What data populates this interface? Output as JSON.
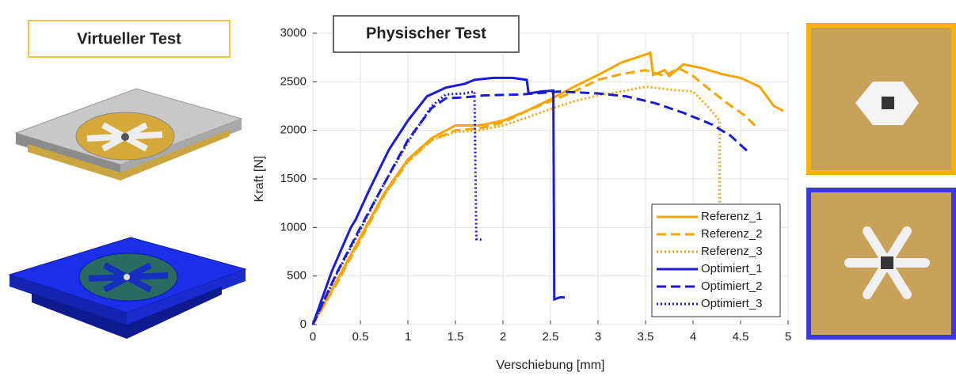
{
  "left_panel": {
    "title": "Virtueller Test"
  },
  "chart_data": {
    "type": "line",
    "annotation": "Physischer Test",
    "xlabel": "Verschiebung [mm]",
    "ylabel": "Kraft [N]",
    "xlim": [
      0,
      5
    ],
    "ylim": [
      0,
      3000
    ],
    "xticks": [
      0,
      0.5,
      1,
      1.5,
      2,
      2.5,
      3,
      3.5,
      4,
      4.5,
      5
    ],
    "yticks": [
      0,
      500,
      1000,
      1500,
      2000,
      2500,
      3000
    ],
    "grid": true,
    "legend": "lower right",
    "series": [
      {
        "name": "Referenz_1",
        "color": "#f7a500",
        "dash": "solid",
        "x": [
          0,
          0.25,
          0.5,
          0.75,
          1,
          1.25,
          1.5,
          1.75,
          2,
          2.25,
          2.5,
          2.75,
          3,
          3.25,
          3.5,
          3.55,
          3.58,
          3.7,
          3.75,
          3.9,
          4.1,
          4.3,
          4.5,
          4.7,
          4.85,
          4.95
        ],
        "values": [
          0,
          450,
          900,
          1350,
          1700,
          1920,
          2050,
          2050,
          2100,
          2200,
          2320,
          2450,
          2570,
          2700,
          2780,
          2800,
          2570,
          2620,
          2560,
          2680,
          2640,
          2580,
          2540,
          2450,
          2250,
          2200
        ]
      },
      {
        "name": "Referenz_2",
        "color": "#f7a500",
        "dash": "dashed",
        "x": [
          0,
          0.25,
          0.5,
          0.75,
          1,
          1.25,
          1.5,
          1.75,
          2,
          2.25,
          2.5,
          2.75,
          3,
          3.25,
          3.5,
          3.7,
          3.85,
          4,
          4.2,
          4.4,
          4.55,
          4.65
        ],
        "values": [
          0,
          420,
          870,
          1330,
          1680,
          1900,
          2000,
          2020,
          2080,
          2200,
          2300,
          2400,
          2520,
          2580,
          2620,
          2560,
          2640,
          2560,
          2400,
          2250,
          2150,
          2050
        ]
      },
      {
        "name": "Referenz_3",
        "color": "#f7a500",
        "dash": "dotted",
        "x": [
          0,
          0.25,
          0.5,
          0.75,
          1,
          1.25,
          1.5,
          1.75,
          2,
          2.25,
          2.5,
          2.75,
          3,
          3.25,
          3.5,
          3.75,
          4,
          4.15,
          4.28,
          4.28
        ],
        "values": [
          0,
          430,
          880,
          1330,
          1680,
          1900,
          1980,
          2000,
          2050,
          2130,
          2220,
          2300,
          2360,
          2400,
          2450,
          2420,
          2400,
          2250,
          2100,
          1100
        ]
      },
      {
        "name": "Optimiert_1",
        "color": "#1a1adb",
        "dash": "solid",
        "x": [
          0,
          0.2,
          0.4,
          0.45,
          0.6,
          0.8,
          1,
          1.2,
          1.4,
          1.6,
          1.7,
          1.9,
          2.1,
          2.25,
          2.27,
          2.4,
          2.53,
          2.54,
          2.6,
          2.65
        ],
        "values": [
          0,
          550,
          1000,
          1080,
          1400,
          1800,
          2100,
          2350,
          2440,
          2480,
          2520,
          2540,
          2540,
          2520,
          2380,
          2400,
          2410,
          260,
          280,
          280
        ]
      },
      {
        "name": "Optimiert_2",
        "color": "#1a1adb",
        "dash": "dashed",
        "x": [
          0,
          0.25,
          0.5,
          0.75,
          1,
          1.25,
          1.4,
          1.6,
          1.8,
          2.2,
          2.6,
          3,
          3.3,
          3.6,
          3.9,
          4.2,
          4.4,
          4.6
        ],
        "values": [
          0,
          530,
          1000,
          1450,
          1900,
          2230,
          2330,
          2340,
          2360,
          2370,
          2400,
          2380,
          2350,
          2280,
          2180,
          2060,
          1940,
          1760
        ]
      },
      {
        "name": "Optimiert_3",
        "color": "#1a1adb",
        "dash": "dotted",
        "x": [
          0,
          0.25,
          0.5,
          0.75,
          1,
          1.25,
          1.4,
          1.6,
          1.7,
          1.72,
          1.8
        ],
        "values": [
          0,
          520,
          980,
          1450,
          1880,
          2250,
          2370,
          2380,
          2400,
          880,
          870
        ]
      }
    ]
  }
}
